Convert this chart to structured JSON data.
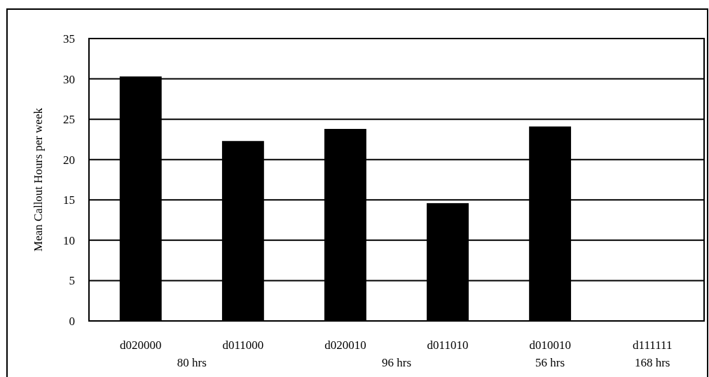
{
  "chart_data": {
    "type": "bar",
    "ylabel": "Mean Callout Hours per week",
    "categories": [
      "d020000",
      "d011000",
      "d020010",
      "d011010",
      "d010010",
      "d111111"
    ],
    "values": [
      30.3,
      22.3,
      23.8,
      14.6,
      24.1,
      0
    ],
    "color": "#000000",
    "ylim": [
      0,
      35
    ],
    "yticks": [
      0,
      5,
      10,
      15,
      20,
      25,
      30,
      35
    ],
    "grid": "y",
    "annotations": [
      "80 hrs",
      "96 hrs",
      "56 hrs",
      "168 hrs"
    ]
  }
}
